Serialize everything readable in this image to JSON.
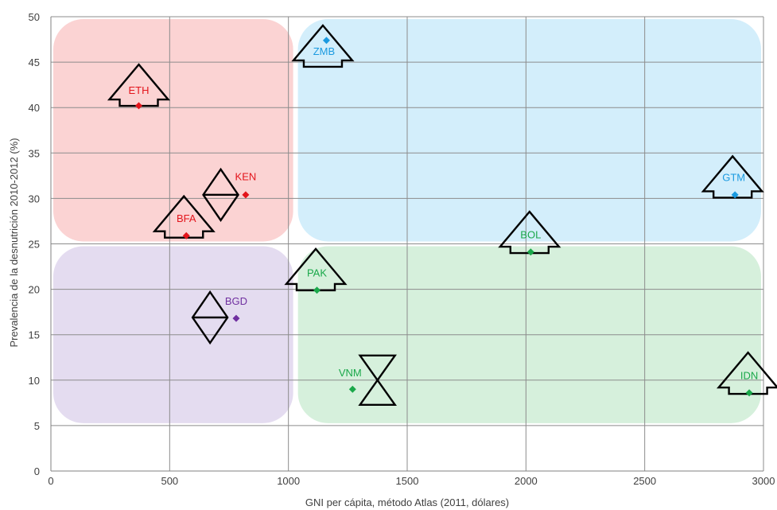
{
  "chart_data": {
    "type": "scatter",
    "title": "",
    "xlabel": "GNI per cápita, método Atlas (2011, dólares)",
    "ylabel": "Prevalencia de la desnutrición 2010-2012 (%)",
    "xlim": [
      0,
      3000
    ],
    "ylim": [
      0,
      50
    ],
    "xticks": [
      0,
      500,
      1000,
      1500,
      2000,
      2500,
      3000
    ],
    "yticks": [
      0,
      5,
      10,
      15,
      20,
      25,
      30,
      35,
      40,
      45,
      50
    ],
    "grid": true,
    "regions": [
      {
        "name": "red",
        "x": [
          0,
          1030
        ],
        "y": [
          25,
          50
        ],
        "color": "#fbd3d3"
      },
      {
        "name": "blue",
        "x": [
          1030,
          3000
        ],
        "y": [
          25,
          50
        ],
        "color": "#d3eefb"
      },
      {
        "name": "purple",
        "x": [
          0,
          1030
        ],
        "y": [
          5,
          25
        ],
        "color": "#e4dcf0"
      },
      {
        "name": "green",
        "x": [
          1030,
          3000
        ],
        "y": [
          5,
          25
        ],
        "color": "#d6f0dc"
      }
    ],
    "points": [
      {
        "label": "ETH",
        "x": 370,
        "y": 40.2,
        "color": "#e3141b",
        "glyph": "tree",
        "gx": 370,
        "gy": 42.2,
        "lx": 370,
        "ly": 41.5
      },
      {
        "label": "KEN",
        "x": 820,
        "y": 30.4,
        "color": "#e3141b",
        "glyph": "diamond",
        "gx": 715,
        "gy": 30.4,
        "lx": 820,
        "ly": 32.0
      },
      {
        "label": "BFA",
        "x": 570,
        "y": 25.9,
        "color": "#e3141b",
        "glyph": "tree",
        "gx": 560,
        "gy": 27.7,
        "lx": 570,
        "ly": 27.4
      },
      {
        "label": "BGD",
        "x": 780,
        "y": 16.8,
        "color": "#7030a0",
        "glyph": "diamond",
        "gx": 670,
        "gy": 16.9,
        "lx": 780,
        "ly": 18.3
      },
      {
        "label": "ZMB",
        "x": 1160,
        "y": 47.4,
        "color": "#1a9ae0",
        "glyph": "tree",
        "gx": 1145,
        "gy": 46.5,
        "lx": 1150,
        "ly": 45.8
      },
      {
        "label": "GTM",
        "x": 2880,
        "y": 30.4,
        "color": "#1a9ae0",
        "glyph": "tree",
        "gx": 2870,
        "gy": 32.1,
        "lx": 2875,
        "ly": 31.9
      },
      {
        "label": "BOL",
        "x": 2020,
        "y": 24.1,
        "color": "#1aa84a",
        "glyph": "tree",
        "gx": 2015,
        "gy": 26.0,
        "lx": 2020,
        "ly": 25.6
      },
      {
        "label": "PAK",
        "x": 1120,
        "y": 19.9,
        "color": "#1aa84a",
        "glyph": "tree",
        "gx": 1115,
        "gy": 21.9,
        "lx": 1120,
        "ly": 21.4
      },
      {
        "label": "VNM",
        "x": 1270,
        "y": 9.0,
        "color": "#1aa84a",
        "glyph": "hourglass",
        "gx": 1375,
        "gy": 10.0,
        "lx": 1260,
        "ly": 10.4
      },
      {
        "label": "IDN",
        "x": 2940,
        "y": 8.6,
        "color": "#1aa84a",
        "glyph": "tree",
        "gx": 2935,
        "gy": 10.5,
        "lx": 2940,
        "ly": 10.1
      }
    ]
  }
}
